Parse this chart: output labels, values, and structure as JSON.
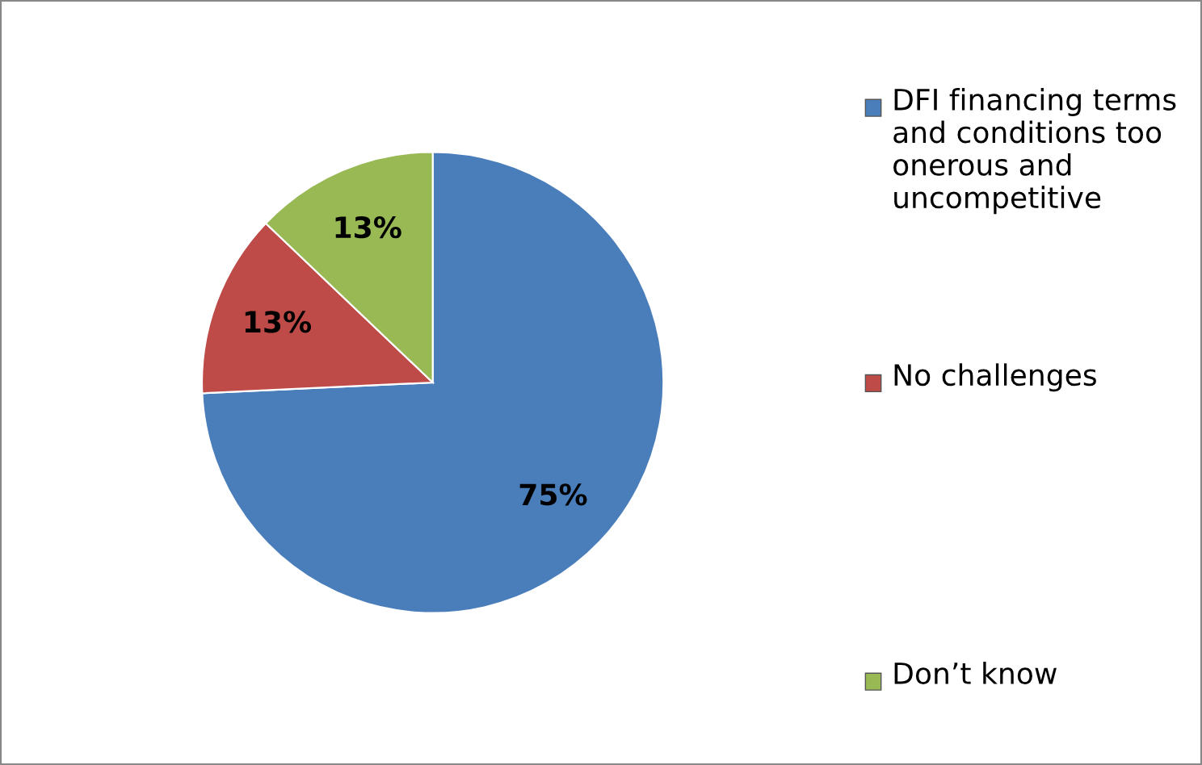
{
  "chart_data": {
    "type": "pie",
    "categories": [
      "DFI financing terms and conditions too onerous and uncompetitive",
      "No challenges",
      "Don’t know"
    ],
    "values": [
      75,
      13,
      13
    ],
    "colors": [
      "#4a7ebb",
      "#be4b48",
      "#98b954"
    ],
    "value_labels": [
      "75%",
      "13%",
      "13%"
    ],
    "legend": "right"
  }
}
